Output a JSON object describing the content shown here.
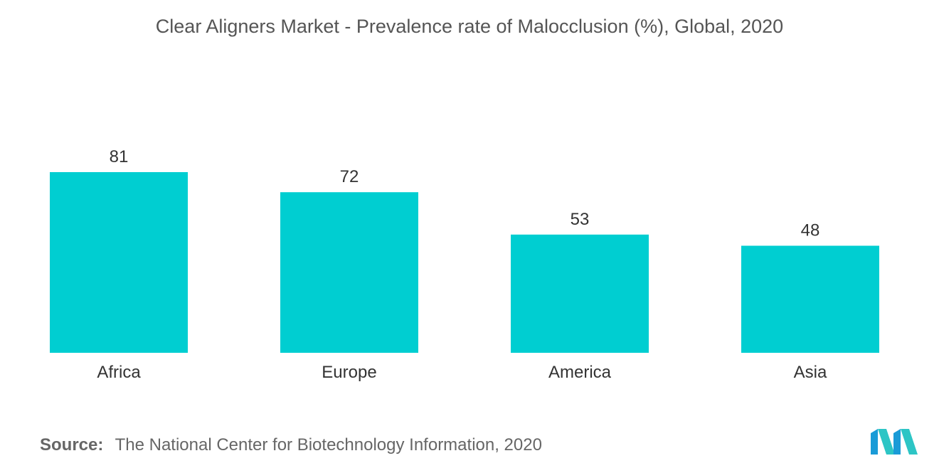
{
  "chart_data": {
    "type": "bar",
    "title": "Clear Aligners Market - Prevalence rate of Malocclusion (%), Global, 2020",
    "categories": [
      "Africa",
      "Europe",
      "America",
      "Asia"
    ],
    "values": [
      81,
      72,
      53,
      48
    ],
    "xlabel": "",
    "ylabel": "",
    "ylim": [
      0,
      81
    ],
    "grid": false,
    "bar_color": "#00CED1",
    "data_labels": true
  },
  "source": {
    "label": "Source:",
    "text": "The National Center for Biotechnology Information, 2020"
  },
  "logo": {
    "icon": "mordor-intelligence-logo-icon",
    "color_primary": "#1a9bd7",
    "color_secondary": "#2dc5c5"
  }
}
